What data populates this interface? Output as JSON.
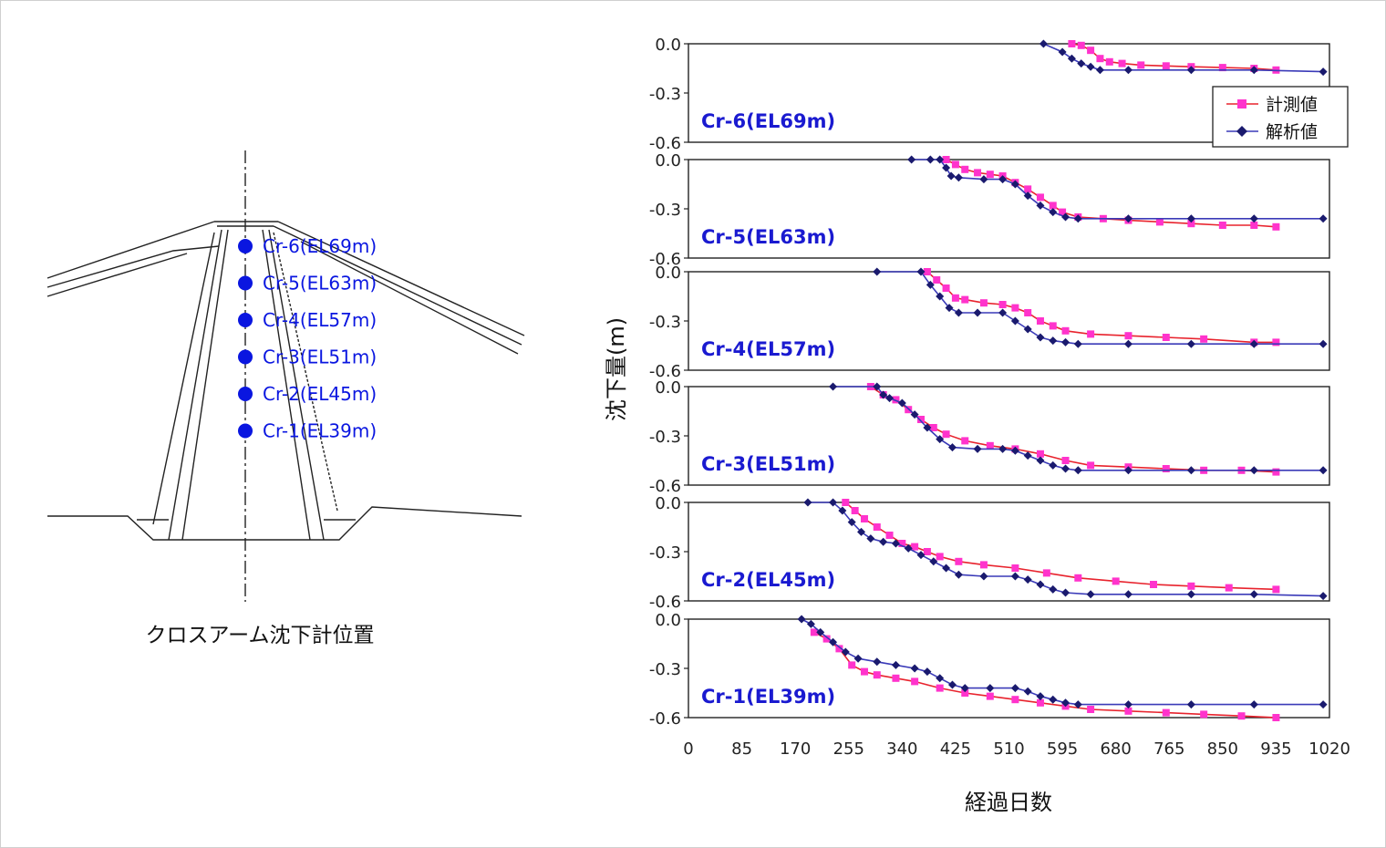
{
  "diagram": {
    "caption": "クロスアーム沈下計位置",
    "gauges": [
      {
        "label": "Cr-6(EL69m)"
      },
      {
        "label": "Cr-5(EL63m)"
      },
      {
        "label": "Cr-4(EL57m)"
      },
      {
        "label": "Cr-3(EL51m)"
      },
      {
        "label": "Cr-2(EL45m)"
      },
      {
        "label": "Cr-1(EL39m)"
      }
    ],
    "marker_color": "#0a16e0"
  },
  "chart_data": {
    "type": "line",
    "xlabel": "経過日数",
    "ylabel": "沈下量(m)",
    "xlim": [
      0,
      1020
    ],
    "ylim": [
      -0.6,
      0.0
    ],
    "xticks": [
      0,
      85,
      170,
      255,
      340,
      425,
      510,
      595,
      680,
      765,
      850,
      935,
      1020
    ],
    "yticks": [
      "0.0",
      "-0.3",
      "-0.6"
    ],
    "legend": {
      "placement": "top-right of first panel",
      "entries": [
        {
          "name": "計測値",
          "color": "#ff33cc",
          "marker": "square"
        },
        {
          "name": "解析値",
          "color": "#1a1a6e",
          "marker": "diamond"
        }
      ]
    },
    "measured_line_color": "#e8232d",
    "analysis_line_color": "#3a3ab8",
    "title_color": "#1a1ad0",
    "panels": [
      {
        "title": "Cr-6(EL69m)",
        "series": [
          {
            "name": "計測値",
            "points": [
              [
                610,
                0.0
              ],
              [
                625,
                -0.01
              ],
              [
                640,
                -0.04
              ],
              [
                655,
                -0.09
              ],
              [
                670,
                -0.11
              ],
              [
                690,
                -0.12
              ],
              [
                720,
                -0.13
              ],
              [
                760,
                -0.135
              ],
              [
                800,
                -0.14
              ],
              [
                850,
                -0.145
              ],
              [
                900,
                -0.15
              ],
              [
                935,
                -0.16
              ]
            ]
          },
          {
            "name": "解析値",
            "points": [
              [
                565,
                0.0
              ],
              [
                595,
                -0.05
              ],
              [
                610,
                -0.09
              ],
              [
                625,
                -0.12
              ],
              [
                640,
                -0.14
              ],
              [
                655,
                -0.16
              ],
              [
                700,
                -0.16
              ],
              [
                800,
                -0.16
              ],
              [
                900,
                -0.16
              ],
              [
                1010,
                -0.17
              ]
            ]
          }
        ]
      },
      {
        "title": "Cr-5(EL63m)",
        "series": [
          {
            "name": "計測値",
            "points": [
              [
                410,
                0.0
              ],
              [
                425,
                -0.03
              ],
              [
                440,
                -0.06
              ],
              [
                460,
                -0.08
              ],
              [
                480,
                -0.09
              ],
              [
                500,
                -0.1
              ],
              [
                520,
                -0.14
              ],
              [
                540,
                -0.18
              ],
              [
                560,
                -0.23
              ],
              [
                580,
                -0.28
              ],
              [
                595,
                -0.32
              ],
              [
                620,
                -0.35
              ],
              [
                660,
                -0.36
              ],
              [
                700,
                -0.37
              ],
              [
                750,
                -0.38
              ],
              [
                800,
                -0.39
              ],
              [
                850,
                -0.4
              ],
              [
                900,
                -0.4
              ],
              [
                935,
                -0.41
              ]
            ]
          },
          {
            "name": "解析値",
            "points": [
              [
                355,
                0.0
              ],
              [
                385,
                0.0
              ],
              [
                400,
                0.0
              ],
              [
                410,
                -0.05
              ],
              [
                418,
                -0.1
              ],
              [
                430,
                -0.11
              ],
              [
                470,
                -0.12
              ],
              [
                500,
                -0.12
              ],
              [
                520,
                -0.15
              ],
              [
                540,
                -0.22
              ],
              [
                560,
                -0.28
              ],
              [
                580,
                -0.32
              ],
              [
                600,
                -0.35
              ],
              [
                620,
                -0.36
              ],
              [
                700,
                -0.36
              ],
              [
                800,
                -0.36
              ],
              [
                900,
                -0.36
              ],
              [
                1010,
                -0.36
              ]
            ]
          }
        ]
      },
      {
        "title": "Cr-4(EL57m)",
        "series": [
          {
            "name": "計測値",
            "points": [
              [
                380,
                0.0
              ],
              [
                395,
                -0.05
              ],
              [
                410,
                -0.1
              ],
              [
                425,
                -0.16
              ],
              [
                440,
                -0.17
              ],
              [
                470,
                -0.19
              ],
              [
                500,
                -0.2
              ],
              [
                520,
                -0.22
              ],
              [
                540,
                -0.25
              ],
              [
                560,
                -0.3
              ],
              [
                580,
                -0.33
              ],
              [
                600,
                -0.36
              ],
              [
                640,
                -0.38
              ],
              [
                700,
                -0.39
              ],
              [
                760,
                -0.4
              ],
              [
                820,
                -0.41
              ],
              [
                900,
                -0.43
              ],
              [
                935,
                -0.43
              ]
            ]
          },
          {
            "name": "解析値",
            "points": [
              [
                300,
                0.0
              ],
              [
                370,
                0.0
              ],
              [
                385,
                -0.08
              ],
              [
                400,
                -0.15
              ],
              [
                415,
                -0.22
              ],
              [
                430,
                -0.25
              ],
              [
                460,
                -0.25
              ],
              [
                500,
                -0.25
              ],
              [
                520,
                -0.3
              ],
              [
                540,
                -0.35
              ],
              [
                560,
                -0.4
              ],
              [
                580,
                -0.42
              ],
              [
                600,
                -0.43
              ],
              [
                620,
                -0.44
              ],
              [
                700,
                -0.44
              ],
              [
                800,
                -0.44
              ],
              [
                900,
                -0.44
              ],
              [
                1010,
                -0.44
              ]
            ]
          }
        ]
      },
      {
        "title": "Cr-3(EL51m)",
        "series": [
          {
            "name": "計測値",
            "points": [
              [
                290,
                0.0
              ],
              [
                310,
                -0.05
              ],
              [
                330,
                -0.08
              ],
              [
                350,
                -0.14
              ],
              [
                370,
                -0.2
              ],
              [
                390,
                -0.25
              ],
              [
                410,
                -0.29
              ],
              [
                440,
                -0.33
              ],
              [
                480,
                -0.36
              ],
              [
                520,
                -0.38
              ],
              [
                560,
                -0.41
              ],
              [
                600,
                -0.45
              ],
              [
                640,
                -0.48
              ],
              [
                700,
                -0.49
              ],
              [
                760,
                -0.5
              ],
              [
                820,
                -0.51
              ],
              [
                880,
                -0.51
              ],
              [
                935,
                -0.52
              ]
            ]
          },
          {
            "name": "解析値",
            "points": [
              [
                230,
                0.0
              ],
              [
                300,
                0.0
              ],
              [
                310,
                -0.05
              ],
              [
                320,
                -0.07
              ],
              [
                340,
                -0.1
              ],
              [
                360,
                -0.17
              ],
              [
                380,
                -0.25
              ],
              [
                400,
                -0.32
              ],
              [
                420,
                -0.37
              ],
              [
                460,
                -0.38
              ],
              [
                500,
                -0.38
              ],
              [
                520,
                -0.39
              ],
              [
                540,
                -0.42
              ],
              [
                560,
                -0.45
              ],
              [
                580,
                -0.48
              ],
              [
                600,
                -0.5
              ],
              [
                620,
                -0.51
              ],
              [
                700,
                -0.51
              ],
              [
                800,
                -0.51
              ],
              [
                900,
                -0.51
              ],
              [
                1010,
                -0.51
              ]
            ]
          }
        ]
      },
      {
        "title": "Cr-2(EL45m)",
        "series": [
          {
            "name": "計測値",
            "points": [
              [
                250,
                0.0
              ],
              [
                265,
                -0.05
              ],
              [
                280,
                -0.1
              ],
              [
                300,
                -0.15
              ],
              [
                320,
                -0.2
              ],
              [
                340,
                -0.25
              ],
              [
                360,
                -0.27
              ],
              [
                380,
                -0.3
              ],
              [
                400,
                -0.33
              ],
              [
                430,
                -0.36
              ],
              [
                470,
                -0.38
              ],
              [
                520,
                -0.4
              ],
              [
                570,
                -0.43
              ],
              [
                620,
                -0.46
              ],
              [
                680,
                -0.48
              ],
              [
                740,
                -0.5
              ],
              [
                800,
                -0.51
              ],
              [
                860,
                -0.52
              ],
              [
                935,
                -0.53
              ]
            ]
          },
          {
            "name": "解析値",
            "points": [
              [
                190,
                0.0
              ],
              [
                230,
                0.0
              ],
              [
                245,
                -0.05
              ],
              [
                260,
                -0.12
              ],
              [
                275,
                -0.18
              ],
              [
                290,
                -0.22
              ],
              [
                310,
                -0.24
              ],
              [
                330,
                -0.25
              ],
              [
                350,
                -0.28
              ],
              [
                370,
                -0.32
              ],
              [
                390,
                -0.36
              ],
              [
                410,
                -0.4
              ],
              [
                430,
                -0.44
              ],
              [
                470,
                -0.45
              ],
              [
                520,
                -0.45
              ],
              [
                540,
                -0.47
              ],
              [
                560,
                -0.5
              ],
              [
                580,
                -0.53
              ],
              [
                600,
                -0.55
              ],
              [
                640,
                -0.56
              ],
              [
                700,
                -0.56
              ],
              [
                800,
                -0.56
              ],
              [
                900,
                -0.56
              ],
              [
                1010,
                -0.57
              ]
            ]
          }
        ]
      },
      {
        "title": "Cr-1(EL39m)",
        "series": [
          {
            "name": "計測値",
            "points": [
              [
                200,
                -0.08
              ],
              [
                220,
                -0.12
              ],
              [
                240,
                -0.18
              ],
              [
                260,
                -0.28
              ],
              [
                280,
                -0.32
              ],
              [
                300,
                -0.34
              ],
              [
                330,
                -0.36
              ],
              [
                360,
                -0.38
              ],
              [
                400,
                -0.42
              ],
              [
                440,
                -0.45
              ],
              [
                480,
                -0.47
              ],
              [
                520,
                -0.49
              ],
              [
                560,
                -0.51
              ],
              [
                600,
                -0.53
              ],
              [
                640,
                -0.55
              ],
              [
                700,
                -0.56
              ],
              [
                760,
                -0.57
              ],
              [
                820,
                -0.58
              ],
              [
                880,
                -0.59
              ],
              [
                935,
                -0.6
              ]
            ]
          },
          {
            "name": "解析値",
            "points": [
              [
                180,
                0.0
              ],
              [
                195,
                -0.03
              ],
              [
                210,
                -0.08
              ],
              [
                230,
                -0.14
              ],
              [
                250,
                -0.2
              ],
              [
                270,
                -0.24
              ],
              [
                300,
                -0.26
              ],
              [
                330,
                -0.28
              ],
              [
                360,
                -0.3
              ],
              [
                380,
                -0.32
              ],
              [
                400,
                -0.36
              ],
              [
                420,
                -0.4
              ],
              [
                440,
                -0.42
              ],
              [
                480,
                -0.42
              ],
              [
                520,
                -0.42
              ],
              [
                540,
                -0.44
              ],
              [
                560,
                -0.47
              ],
              [
                580,
                -0.49
              ],
              [
                600,
                -0.51
              ],
              [
                620,
                -0.52
              ],
              [
                700,
                -0.52
              ],
              [
                800,
                -0.52
              ],
              [
                900,
                -0.52
              ],
              [
                1010,
                -0.52
              ]
            ]
          }
        ]
      }
    ]
  }
}
